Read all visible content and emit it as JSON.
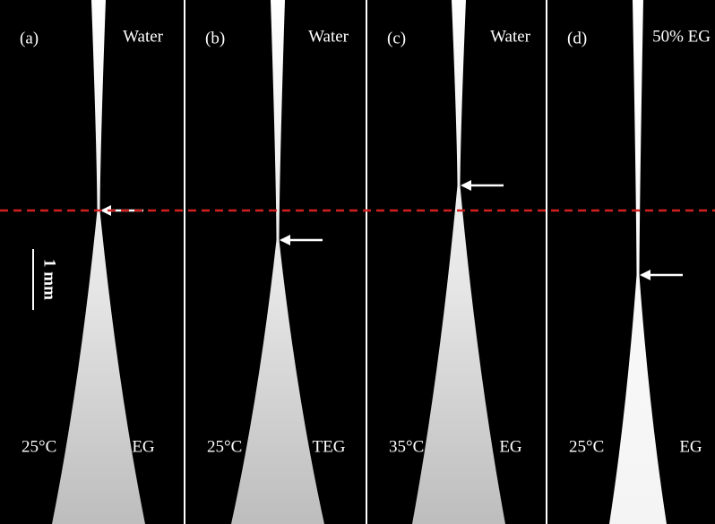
{
  "panels": [
    {
      "label": "(a)",
      "top_label": "Water",
      "temperature": "25°C",
      "bottom_label": "EG"
    },
    {
      "label": "(b)",
      "top_label": "Water",
      "temperature": "25°C",
      "bottom_label": "TEG"
    },
    {
      "label": "(c)",
      "top_label": "Water",
      "temperature": "35°C",
      "bottom_label": "EG"
    },
    {
      "label": "(d)",
      "top_label": "50% EG",
      "temperature": "25°C",
      "bottom_label": "EG"
    }
  ],
  "scale_bar": {
    "label": "1 mm"
  }
}
